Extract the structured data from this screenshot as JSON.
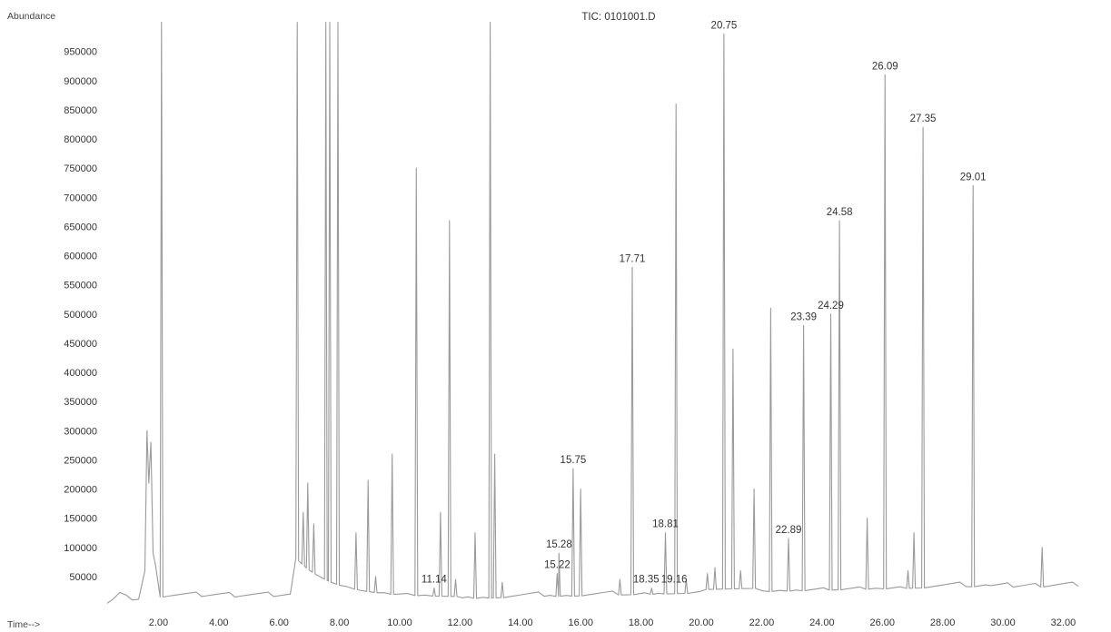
{
  "chart_data": {
    "type": "line",
    "title": "TIC: 0101001.D",
    "ylabel": "Abundance",
    "xlabel": "Time-->",
    "xlim": [
      0.3,
      32.5
    ],
    "ylim": [
      0,
      1000000
    ],
    "x_ticks": [
      "2.00",
      "4.00",
      "6.00",
      "8.00",
      "10.00",
      "12.00",
      "14.00",
      "16.00",
      "18.00",
      "20.00",
      "22.00",
      "24.00",
      "26.00",
      "28.00",
      "30.00",
      "32.00"
    ],
    "y_ticks": [
      "50000",
      "100000",
      "150000",
      "200000",
      "250000",
      "300000",
      "350000",
      "400000",
      "450000",
      "500000",
      "550000",
      "600000",
      "650000",
      "700000",
      "750000",
      "800000",
      "850000",
      "900000",
      "950000"
    ],
    "grid": false,
    "legend": "none",
    "line_color": "#9a9a9a",
    "series": [
      {
        "peaks": [
          {
            "x": 2.1,
            "y": 1000000
          },
          {
            "x": 6.6,
            "y": 1000000
          },
          {
            "x": 6.8,
            "y": 160000
          },
          {
            "x": 6.95,
            "y": 210000
          },
          {
            "x": 7.15,
            "y": 140000
          },
          {
            "x": 7.55,
            "y": 1000000
          },
          {
            "x": 7.68,
            "y": 1000000
          },
          {
            "x": 7.95,
            "y": 1000000
          },
          {
            "x": 8.55,
            "y": 125000
          },
          {
            "x": 8.95,
            "y": 215000
          },
          {
            "x": 9.2,
            "y": 50000
          },
          {
            "x": 9.75,
            "y": 260000
          },
          {
            "x": 10.55,
            "y": 750000
          },
          {
            "x": 11.14,
            "y": 30000
          },
          {
            "x": 11.35,
            "y": 160000
          },
          {
            "x": 11.65,
            "y": 660000
          },
          {
            "x": 11.85,
            "y": 45000
          },
          {
            "x": 12.5,
            "y": 125000
          },
          {
            "x": 13.0,
            "y": 1000000
          },
          {
            "x": 13.15,
            "y": 260000
          },
          {
            "x": 13.4,
            "y": 40000
          },
          {
            "x": 15.22,
            "y": 55000
          },
          {
            "x": 15.28,
            "y": 90000
          },
          {
            "x": 15.75,
            "y": 235000
          },
          {
            "x": 16.0,
            "y": 200000
          },
          {
            "x": 17.3,
            "y": 45000
          },
          {
            "x": 17.71,
            "y": 580000
          },
          {
            "x": 18.35,
            "y": 30000
          },
          {
            "x": 18.81,
            "y": 125000
          },
          {
            "x": 19.16,
            "y": 860000
          },
          {
            "x": 19.5,
            "y": 45000
          },
          {
            "x": 20.2,
            "y": 55000
          },
          {
            "x": 20.45,
            "y": 65000
          },
          {
            "x": 20.75,
            "y": 980000
          },
          {
            "x": 21.05,
            "y": 440000
          },
          {
            "x": 21.3,
            "y": 60000
          },
          {
            "x": 21.75,
            "y": 200000
          },
          {
            "x": 22.3,
            "y": 510000
          },
          {
            "x": 22.89,
            "y": 115000
          },
          {
            "x": 23.39,
            "y": 480000
          },
          {
            "x": 24.29,
            "y": 500000
          },
          {
            "x": 24.58,
            "y": 660000
          },
          {
            "x": 25.5,
            "y": 150000
          },
          {
            "x": 26.09,
            "y": 910000
          },
          {
            "x": 26.85,
            "y": 60000
          },
          {
            "x": 27.05,
            "y": 125000
          },
          {
            "x": 27.35,
            "y": 820000
          },
          {
            "x": 29.01,
            "y": 720000
          },
          {
            "x": 31.3,
            "y": 100000
          }
        ]
      }
    ],
    "labels": [
      {
        "text": "11.14",
        "x": 11.14,
        "y": 30000
      },
      {
        "text": "15.22",
        "x": 15.22,
        "y": 55000
      },
      {
        "text": "15.28",
        "x": 15.28,
        "y": 90000
      },
      {
        "text": "15.75",
        "x": 15.75,
        "y": 235000
      },
      {
        "text": "17.71",
        "x": 17.71,
        "y": 580000
      },
      {
        "text": "18.35",
        "x": 18.35,
        "y": 30000
      },
      {
        "text": "19.16",
        "x": 19.16,
        "y": 30000
      },
      {
        "text": "18.81",
        "x": 18.81,
        "y": 125000
      },
      {
        "text": "20.75",
        "x": 20.75,
        "y": 980000
      },
      {
        "text": "22.89",
        "x": 22.89,
        "y": 115000
      },
      {
        "text": "23.39",
        "x": 23.39,
        "y": 480000
      },
      {
        "text": "24.29",
        "x": 24.29,
        "y": 500000
      },
      {
        "text": "24.58",
        "x": 24.58,
        "y": 660000
      },
      {
        "text": "26.09",
        "x": 26.09,
        "y": 910000
      },
      {
        "text": "27.35",
        "x": 27.35,
        "y": 820000
      },
      {
        "text": "29.01",
        "x": 29.01,
        "y": 720000
      }
    ]
  }
}
